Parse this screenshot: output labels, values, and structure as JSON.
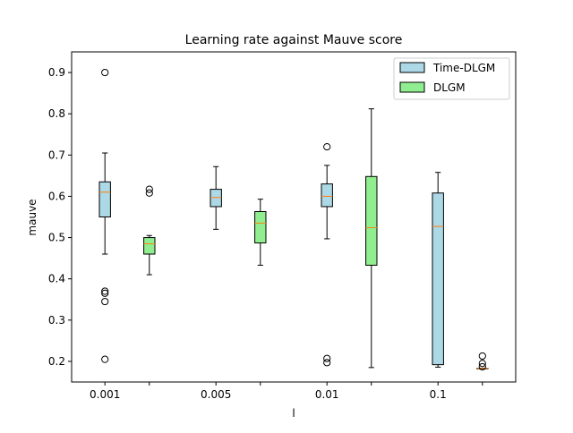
{
  "chart_data": {
    "type": "boxplot",
    "title": "Learning rate against Mauve score",
    "xlabel": "l",
    "ylabel": "mauve",
    "categories": [
      "0.001",
      "0.005",
      "0.01",
      "0.1"
    ],
    "ylim": [
      0.15,
      0.95
    ],
    "yticks": [
      0.2,
      0.3,
      0.4,
      0.5,
      0.6,
      0.7,
      0.8,
      0.9
    ],
    "ytick_labels": [
      "0.2",
      "0.3",
      "0.4",
      "0.5",
      "0.6",
      "0.7",
      "0.8",
      "0.9"
    ],
    "grid": false,
    "legend_position": "top-right",
    "series": [
      {
        "name": "Time-DLGM",
        "color": "#add8e6",
        "boxes": [
          {
            "whisker_low": 0.46,
            "q1": 0.55,
            "median": 0.61,
            "q3": 0.635,
            "whisker_high": 0.705,
            "outliers": [
              0.9,
              0.37,
              0.365,
              0.345,
              0.205
            ]
          },
          {
            "whisker_low": 0.52,
            "q1": 0.575,
            "median": 0.597,
            "q3": 0.617,
            "whisker_high": 0.672,
            "outliers": []
          },
          {
            "whisker_low": 0.497,
            "q1": 0.575,
            "median": 0.6,
            "q3": 0.63,
            "whisker_high": 0.675,
            "outliers": [
              0.72,
              0.207,
              0.197
            ]
          },
          {
            "whisker_low": 0.186,
            "q1": 0.192,
            "median": 0.527,
            "q3": 0.608,
            "whisker_high": 0.658,
            "outliers": []
          }
        ]
      },
      {
        "name": "DLGM",
        "color": "#90ee90",
        "boxes": [
          {
            "whisker_low": 0.41,
            "q1": 0.46,
            "median": 0.485,
            "q3": 0.5,
            "whisker_high": 0.505,
            "outliers": [
              0.617,
              0.608
            ]
          },
          {
            "whisker_low": 0.433,
            "q1": 0.487,
            "median": 0.535,
            "q3": 0.563,
            "whisker_high": 0.593,
            "outliers": []
          },
          {
            "whisker_low": 0.185,
            "q1": 0.433,
            "median": 0.524,
            "q3": 0.648,
            "whisker_high": 0.812,
            "outliers": []
          },
          {
            "whisker_low": 0.183,
            "q1": 0.183,
            "median": 0.183,
            "q3": 0.183,
            "whisker_high": 0.183,
            "outliers": [
              0.213,
              0.195,
              0.187
            ]
          }
        ]
      }
    ]
  }
}
